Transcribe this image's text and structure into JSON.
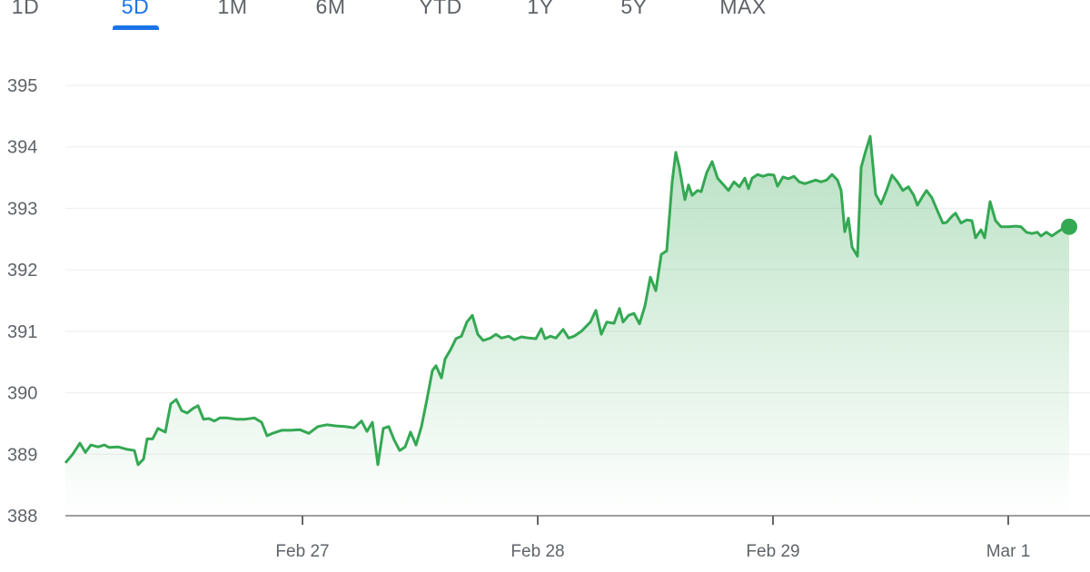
{
  "range_tabs": {
    "items": [
      "1D",
      "5D",
      "1M",
      "6M",
      "YTD",
      "1Y",
      "5Y",
      "MAX"
    ],
    "selected": "5D"
  },
  "colors": {
    "line": "#34a853",
    "accent": "#1a73e8",
    "grid": "#eeeeee",
    "axis": "#9e9e9e"
  },
  "chart_data": {
    "type": "area",
    "title": "",
    "xlabel": "",
    "ylabel": "",
    "ylim": [
      388,
      395
    ],
    "y_ticks": [
      "388",
      "389",
      "390",
      "391",
      "392",
      "393",
      "394",
      "395"
    ],
    "x_ticks": [
      "Feb 27",
      "Feb 28",
      "Feb 29",
      "Mar 1"
    ],
    "grid": true,
    "end_marker": true,
    "series": [
      {
        "values": [
          388.86,
          389.0,
          389.18,
          389.03,
          389.15,
          389.12,
          389.15,
          389.11,
          389.12,
          389.08,
          389.06,
          388.83,
          388.92,
          389.25,
          389.25,
          389.42,
          389.36,
          389.82,
          389.89,
          389.71,
          389.67,
          389.74,
          389.79,
          389.57,
          389.58,
          389.54,
          389.59,
          389.59,
          389.57,
          389.57,
          389.59,
          389.52,
          389.3,
          389.34,
          389.39,
          389.39,
          389.4,
          389.34,
          389.45,
          389.48,
          389.46,
          389.45,
          389.43,
          389.54,
          389.37,
          389.52,
          388.83,
          389.42,
          389.45,
          389.23,
          389.06,
          389.12,
          389.36,
          389.15,
          389.45,
          389.89,
          390.36,
          390.44,
          390.24,
          390.55,
          390.7,
          390.88,
          390.92,
          391.15,
          391.26,
          390.95,
          390.85,
          390.89,
          390.95,
          390.89,
          390.92,
          390.86,
          390.91,
          390.89,
          390.88,
          391.04,
          390.88,
          390.92,
          390.89,
          391.03,
          390.89,
          390.92,
          391.0,
          391.15,
          391.34,
          390.95,
          391.15,
          391.13,
          391.37,
          391.15,
          391.26,
          391.29,
          391.12,
          391.41,
          391.88,
          391.66,
          392.25,
          392.31,
          393.43,
          393.91,
          393.66,
          393.14,
          393.38,
          393.21,
          393.29,
          393.27,
          393.58,
          393.76,
          393.49,
          393.39,
          393.29,
          393.43,
          393.35,
          393.49,
          393.32,
          393.49,
          393.55,
          393.52,
          393.55,
          393.54,
          393.36,
          393.51,
          393.48,
          393.52,
          393.43,
          393.4,
          393.43,
          393.46,
          393.43,
          393.46,
          393.55,
          393.46,
          393.29,
          392.62,
          392.84,
          392.37,
          392.22,
          393.66,
          393.88,
          394.17,
          393.23,
          393.07,
          393.29,
          393.54,
          393.43,
          393.29,
          393.35,
          393.21,
          393.05,
          393.2,
          393.29,
          393.17,
          392.96,
          392.76,
          392.77,
          392.87,
          392.92,
          392.76,
          392.81,
          392.8,
          392.52,
          392.65,
          392.52,
          393.11,
          392.8,
          392.7,
          392.7,
          392.71,
          392.7,
          392.61,
          392.59,
          392.61,
          392.55,
          392.61,
          392.55,
          392.61,
          392.67,
          392.7
        ]
      }
    ]
  }
}
